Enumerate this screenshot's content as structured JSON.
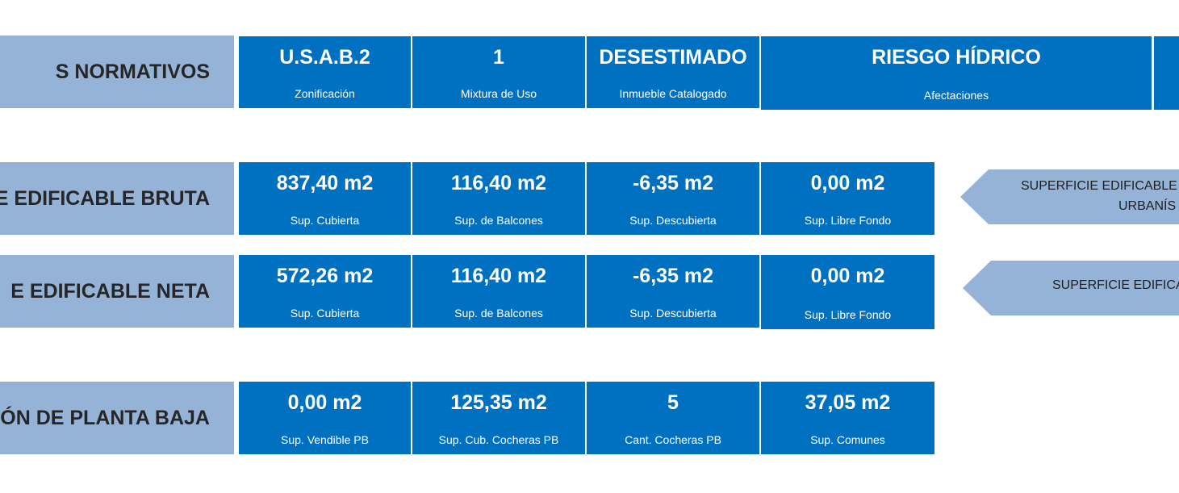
{
  "rows": [
    {
      "label": "S NORMATIVOS",
      "cells": [
        {
          "value": "U.S.A.B.2",
          "caption": "Zonificación"
        },
        {
          "value": "1",
          "caption": "Mixtura de Uso"
        },
        {
          "value": "DESESTIMADO",
          "caption": "Inmueble Catalogado"
        },
        {
          "value": "RIESGO HÍDRICO",
          "caption": "Afectaciones"
        }
      ]
    },
    {
      "label": "E EDIFICABLE BRUTA",
      "cells": [
        {
          "value": "837,40 m2",
          "caption": "Sup. Cubierta"
        },
        {
          "value": "116,40 m2",
          "caption": "Sup. de Balcones"
        },
        {
          "value": "-6,35 m2",
          "caption": "Sup. Descubierta"
        },
        {
          "value": "0,00 m2",
          "caption": "Sup. Libre Fondo"
        }
      ],
      "arrow": {
        "line1": "SUPERFICIE EDIFICABLE",
        "line2": "URBANÍS"
      }
    },
    {
      "label": "E EDIFICABLE NETA",
      "cells": [
        {
          "value": "572,26 m2",
          "caption": "Sup. Cubierta"
        },
        {
          "value": "116,40 m2",
          "caption": "Sup. de Balcones"
        },
        {
          "value": "-6,35 m2",
          "caption": "Sup. Descubierta"
        },
        {
          "value": "0,00 m2",
          "caption": "Sup. Libre Fondo"
        }
      ],
      "arrow": {
        "line1": "SUPERFICIE EDIFICA"
      }
    },
    {
      "label": "IÓN DE PLANTA BAJA",
      "cells": [
        {
          "value": "0,00 m2",
          "caption": "Sup. Vendible PB"
        },
        {
          "value": "125,35 m2",
          "caption": "Sup. Cub. Cocheras  PB"
        },
        {
          "value": "5",
          "caption": "Cant. Cocheras PB"
        },
        {
          "value": "37,05 m2",
          "caption": "Sup. Comunes"
        }
      ]
    }
  ]
}
